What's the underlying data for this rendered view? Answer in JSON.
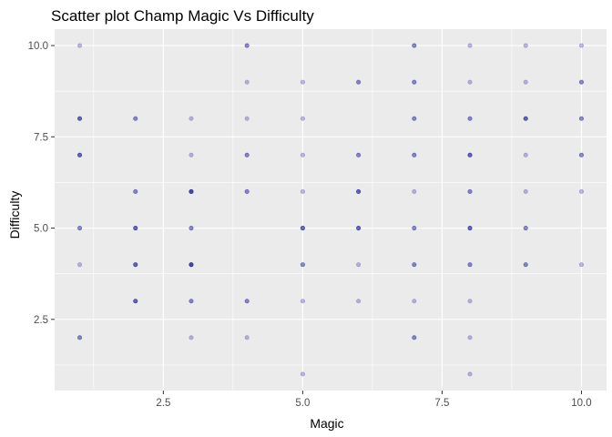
{
  "chart_data": {
    "type": "scatter",
    "title": "Scatter plot Champ Magic Vs Difficulty",
    "xlabel": "Magic",
    "ylabel": "Difficulty",
    "xlim": [
      0.55,
      10.45
    ],
    "ylim": [
      0.55,
      10.45
    ],
    "x_ticks": [
      2.5,
      5.0,
      7.5,
      10.0
    ],
    "x_tick_labels": [
      "2.5",
      "5.0",
      "7.5",
      "10.0"
    ],
    "y_ticks": [
      2.5,
      5.0,
      7.5,
      10.0
    ],
    "y_tick_labels": [
      "2.5",
      "5.0",
      "7.5",
      "10.0"
    ],
    "grid": true,
    "point_color": "#00008b",
    "point_alpha": 0.25,
    "panel_color": "#ebebeb",
    "points": [
      {
        "x": 1,
        "y": 10
      },
      {
        "x": 1,
        "y": 8
      },
      {
        "x": 1,
        "y": 8
      },
      {
        "x": 1,
        "y": 8
      },
      {
        "x": 1,
        "y": 7
      },
      {
        "x": 1,
        "y": 7
      },
      {
        "x": 1,
        "y": 7
      },
      {
        "x": 1,
        "y": 5
      },
      {
        "x": 1,
        "y": 5
      },
      {
        "x": 1,
        "y": 4
      },
      {
        "x": 1,
        "y": 2
      },
      {
        "x": 1,
        "y": 2
      },
      {
        "x": 2,
        "y": 8
      },
      {
        "x": 2,
        "y": 8
      },
      {
        "x": 2,
        "y": 6
      },
      {
        "x": 2,
        "y": 6
      },
      {
        "x": 2,
        "y": 5
      },
      {
        "x": 2,
        "y": 5
      },
      {
        "x": 2,
        "y": 5
      },
      {
        "x": 2,
        "y": 4
      },
      {
        "x": 2,
        "y": 4
      },
      {
        "x": 2,
        "y": 4
      },
      {
        "x": 2,
        "y": 3
      },
      {
        "x": 2,
        "y": 3
      },
      {
        "x": 2,
        "y": 3
      },
      {
        "x": 3,
        "y": 8
      },
      {
        "x": 3,
        "y": 7
      },
      {
        "x": 3,
        "y": 6
      },
      {
        "x": 3,
        "y": 6
      },
      {
        "x": 3,
        "y": 6
      },
      {
        "x": 3,
        "y": 6
      },
      {
        "x": 3,
        "y": 5
      },
      {
        "x": 3,
        "y": 5
      },
      {
        "x": 3,
        "y": 4
      },
      {
        "x": 3,
        "y": 4
      },
      {
        "x": 3,
        "y": 4
      },
      {
        "x": 3,
        "y": 4
      },
      {
        "x": 3,
        "y": 3
      },
      {
        "x": 3,
        "y": 3
      },
      {
        "x": 3,
        "y": 2
      },
      {
        "x": 4,
        "y": 10
      },
      {
        "x": 4,
        "y": 10
      },
      {
        "x": 4,
        "y": 9
      },
      {
        "x": 4,
        "y": 8
      },
      {
        "x": 4,
        "y": 7
      },
      {
        "x": 4,
        "y": 7
      },
      {
        "x": 4,
        "y": 6
      },
      {
        "x": 4,
        "y": 6
      },
      {
        "x": 4,
        "y": 3
      },
      {
        "x": 4,
        "y": 3
      },
      {
        "x": 4,
        "y": 2
      },
      {
        "x": 5,
        "y": 9
      },
      {
        "x": 5,
        "y": 8
      },
      {
        "x": 5,
        "y": 7
      },
      {
        "x": 5,
        "y": 6
      },
      {
        "x": 5,
        "y": 5
      },
      {
        "x": 5,
        "y": 5
      },
      {
        "x": 5,
        "y": 5
      },
      {
        "x": 5,
        "y": 4
      },
      {
        "x": 5,
        "y": 4
      },
      {
        "x": 5,
        "y": 3
      },
      {
        "x": 5,
        "y": 1
      },
      {
        "x": 6,
        "y": 9
      },
      {
        "x": 6,
        "y": 9
      },
      {
        "x": 6,
        "y": 7
      },
      {
        "x": 6,
        "y": 7
      },
      {
        "x": 6,
        "y": 6
      },
      {
        "x": 6,
        "y": 6
      },
      {
        "x": 6,
        "y": 6
      },
      {
        "x": 6,
        "y": 5
      },
      {
        "x": 6,
        "y": 5
      },
      {
        "x": 6,
        "y": 5
      },
      {
        "x": 6,
        "y": 4
      },
      {
        "x": 6,
        "y": 3
      },
      {
        "x": 7,
        "y": 10
      },
      {
        "x": 7,
        "y": 10
      },
      {
        "x": 7,
        "y": 9
      },
      {
        "x": 7,
        "y": 9
      },
      {
        "x": 7,
        "y": 8
      },
      {
        "x": 7,
        "y": 8
      },
      {
        "x": 7,
        "y": 7
      },
      {
        "x": 7,
        "y": 7
      },
      {
        "x": 7,
        "y": 6
      },
      {
        "x": 7,
        "y": 5
      },
      {
        "x": 7,
        "y": 5
      },
      {
        "x": 7,
        "y": 4
      },
      {
        "x": 7,
        "y": 4
      },
      {
        "x": 7,
        "y": 3
      },
      {
        "x": 7,
        "y": 2
      },
      {
        "x": 7,
        "y": 2
      },
      {
        "x": 8,
        "y": 10
      },
      {
        "x": 8,
        "y": 9
      },
      {
        "x": 8,
        "y": 8
      },
      {
        "x": 8,
        "y": 8
      },
      {
        "x": 8,
        "y": 7
      },
      {
        "x": 8,
        "y": 7
      },
      {
        "x": 8,
        "y": 7
      },
      {
        "x": 8,
        "y": 6
      },
      {
        "x": 8,
        "y": 6
      },
      {
        "x": 8,
        "y": 5
      },
      {
        "x": 8,
        "y": 5
      },
      {
        "x": 8,
        "y": 5
      },
      {
        "x": 8,
        "y": 4
      },
      {
        "x": 8,
        "y": 4
      },
      {
        "x": 8,
        "y": 3
      },
      {
        "x": 8,
        "y": 2
      },
      {
        "x": 8,
        "y": 1
      },
      {
        "x": 9,
        "y": 10
      },
      {
        "x": 9,
        "y": 9
      },
      {
        "x": 9,
        "y": 8
      },
      {
        "x": 9,
        "y": 8
      },
      {
        "x": 9,
        "y": 8
      },
      {
        "x": 9,
        "y": 7
      },
      {
        "x": 9,
        "y": 6
      },
      {
        "x": 9,
        "y": 5
      },
      {
        "x": 9,
        "y": 5
      },
      {
        "x": 9,
        "y": 4
      },
      {
        "x": 9,
        "y": 4
      },
      {
        "x": 10,
        "y": 10
      },
      {
        "x": 10,
        "y": 9
      },
      {
        "x": 10,
        "y": 9
      },
      {
        "x": 10,
        "y": 8
      },
      {
        "x": 10,
        "y": 8
      },
      {
        "x": 10,
        "y": 7
      },
      {
        "x": 10,
        "y": 7
      },
      {
        "x": 10,
        "y": 6
      },
      {
        "x": 10,
        "y": 4
      }
    ]
  }
}
